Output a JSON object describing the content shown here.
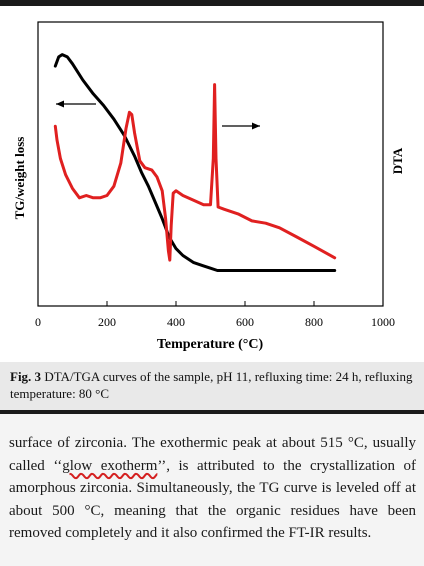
{
  "chart_data": {
    "type": "line",
    "xlabel": "Temperature (°C)",
    "ylabel_left": "TG/weight loss",
    "ylabel_right": "DTA",
    "xlim": [
      0,
      1000
    ],
    "xticks": [
      0,
      200,
      400,
      600,
      800,
      1000
    ],
    "series": [
      {
        "color": "#000000",
        "x": [
          50,
          60,
          70,
          85,
          100,
          130,
          160,
          190,
          220,
          250,
          280,
          300,
          320,
          340,
          360,
          380,
          400,
          420,
          450,
          480,
          500,
          520,
          600,
          700,
          800,
          860
        ],
        "y": [
          0.9,
          0.94,
          0.95,
          0.94,
          0.91,
          0.84,
          0.78,
          0.73,
          0.67,
          0.6,
          0.51,
          0.44,
          0.38,
          0.31,
          0.24,
          0.16,
          0.11,
          0.08,
          0.05,
          0.035,
          0.025,
          0.015,
          0.015,
          0.015,
          0.015,
          0.015
        ]
      },
      {
        "color": "#e02020",
        "x": [
          50,
          55,
          65,
          80,
          100,
          120,
          140,
          160,
          180,
          200,
          220,
          240,
          255,
          265,
          272,
          280,
          295,
          310,
          330,
          345,
          360,
          370,
          378,
          382,
          386,
          392,
          400,
          420,
          450,
          480,
          500,
          508,
          512,
          516,
          522,
          540,
          580,
          620,
          660,
          700,
          750,
          800,
          860
        ],
        "y": [
          0.64,
          0.58,
          0.5,
          0.43,
          0.37,
          0.33,
          0.34,
          0.33,
          0.33,
          0.34,
          0.38,
          0.48,
          0.63,
          0.7,
          0.69,
          0.61,
          0.49,
          0.46,
          0.45,
          0.42,
          0.36,
          0.24,
          0.1,
          0.06,
          0.21,
          0.35,
          0.36,
          0.34,
          0.32,
          0.3,
          0.3,
          0.5,
          0.82,
          0.5,
          0.29,
          0.28,
          0.26,
          0.23,
          0.22,
          0.2,
          0.16,
          0.12,
          0.07
        ]
      }
    ],
    "annotations": [
      {
        "type": "arrow",
        "direction": "left",
        "refers_to_series": 0
      },
      {
        "type": "arrow",
        "direction": "right",
        "refers_to_series": 1
      }
    ]
  },
  "caption": {
    "label": "Fig. 3",
    "text": "DTA/TGA curves of the sample, pH 11, refluxing time: 24 h, refluxing temperature: 80 °C"
  },
  "body": {
    "before": "surface of zirconia. The exothermic peak at about 515 °C, usually called ‘‘",
    "highlight": "glow exotherm",
    "after": "’’, is attributed to the crystallization of amorphous zirconia. Simultaneously, the TG curve is leveled off at about 500 °C, meaning that the organic residues have been removed completely and it also confirmed the FT-IR results."
  }
}
